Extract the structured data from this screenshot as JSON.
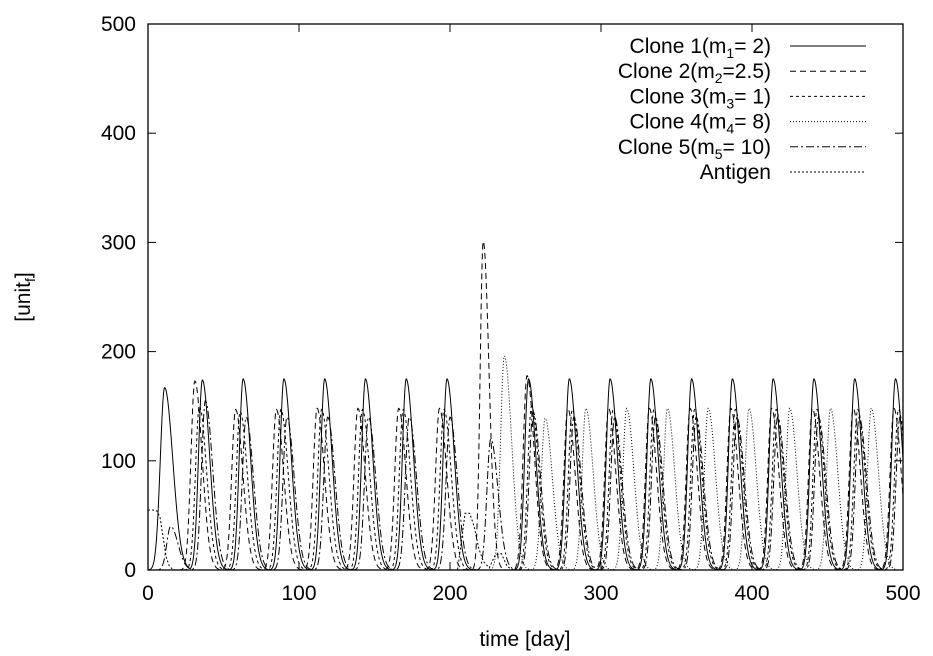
{
  "chart_data": {
    "type": "line",
    "title": "",
    "xlabel": "time [day]",
    "ylabel_main": "[unit",
    "ylabel_sub": "f",
    "ylabel_tail": "]",
    "xlim": [
      0,
      500
    ],
    "ylim": [
      0,
      500
    ],
    "x_ticks": [
      0,
      100,
      200,
      300,
      400,
      500
    ],
    "y_ticks": [
      0,
      100,
      200,
      300,
      400,
      500
    ],
    "x_tick_labels": [
      "0",
      "100",
      "200",
      "300",
      "400",
      "500"
    ],
    "y_tick_labels": [
      "0",
      "100",
      "200",
      "300",
      "400",
      "500"
    ],
    "grid": false,
    "legend_position": "top-right",
    "series": [
      {
        "name": "Clone 1(m1=   2)",
        "legend": {
          "pre": "Clone 1(m",
          "sub": "1",
          "post": "=   2)"
        },
        "dash": "",
        "peaks": [
          {
            "x": 11,
            "y": 167,
            "w": 4.5
          },
          {
            "x": 36,
            "y": 174,
            "w": 4.0
          },
          {
            "x": 63,
            "y": 175,
            "w": 4.0
          },
          {
            "x": 90,
            "y": 175,
            "w": 4.0
          },
          {
            "x": 117,
            "y": 175,
            "w": 4.0
          },
          {
            "x": 144,
            "y": 175,
            "w": 4.0
          },
          {
            "x": 171,
            "y": 175,
            "w": 4.0
          },
          {
            "x": 198,
            "y": 175,
            "w": 4.0
          },
          {
            "x": 252,
            "y": 175,
            "w": 4.0
          },
          {
            "x": 279,
            "y": 175,
            "w": 4.0
          },
          {
            "x": 306,
            "y": 175,
            "w": 4.0
          },
          {
            "x": 333,
            "y": 175,
            "w": 4.0
          },
          {
            "x": 360,
            "y": 175,
            "w": 4.0
          },
          {
            "x": 387,
            "y": 175,
            "w": 4.0
          },
          {
            "x": 414,
            "y": 175,
            "w": 4.0
          },
          {
            "x": 441,
            "y": 175,
            "w": 4.0
          },
          {
            "x": 468,
            "y": 175,
            "w": 4.0
          },
          {
            "x": 495,
            "y": 175,
            "w": 4.0
          }
        ]
      },
      {
        "name": "Clone 2(m2=2.5)",
        "legend": {
          "pre": "Clone 2(m",
          "sub": "2",
          "post": "=2.5)"
        },
        "dash": "6,4",
        "peaks": [
          {
            "x": 31,
            "y": 173,
            "w": 4.0
          },
          {
            "x": 58,
            "y": 147,
            "w": 4.0
          },
          {
            "x": 85,
            "y": 147,
            "w": 4.0
          },
          {
            "x": 112,
            "y": 148,
            "w": 4.0
          },
          {
            "x": 139,
            "y": 148,
            "w": 4.0
          },
          {
            "x": 166,
            "y": 148,
            "w": 4.0
          },
          {
            "x": 193,
            "y": 148,
            "w": 4.0
          },
          {
            "x": 222,
            "y": 301,
            "w": 3.2
          },
          {
            "x": 251,
            "y": 178,
            "w": 4.0
          },
          {
            "x": 278,
            "y": 148,
            "w": 4.0
          },
          {
            "x": 305,
            "y": 148,
            "w": 4.0
          },
          {
            "x": 332,
            "y": 148,
            "w": 4.0
          },
          {
            "x": 359,
            "y": 148,
            "w": 4.0
          },
          {
            "x": 386,
            "y": 148,
            "w": 4.0
          },
          {
            "x": 413,
            "y": 148,
            "w": 4.0
          },
          {
            "x": 440,
            "y": 148,
            "w": 4.0
          },
          {
            "x": 467,
            "y": 148,
            "w": 4.0
          },
          {
            "x": 494,
            "y": 148,
            "w": 4.0
          }
        ]
      },
      {
        "name": "Clone 3(m3=   1)",
        "legend": {
          "pre": "Clone 3(m",
          "sub": "3",
          "post": "=   1)"
        },
        "dash": "3,3",
        "peaks": [
          {
            "x": 34,
            "y": 150,
            "w": 4.0
          },
          {
            "x": 61,
            "y": 145,
            "w": 4.0
          },
          {
            "x": 88,
            "y": 147,
            "w": 4.0
          },
          {
            "x": 115,
            "y": 147,
            "w": 4.0
          },
          {
            "x": 142,
            "y": 147,
            "w": 4.0
          },
          {
            "x": 169,
            "y": 147,
            "w": 4.0
          },
          {
            "x": 196,
            "y": 147,
            "w": 4.0
          },
          {
            "x": 254,
            "y": 150,
            "w": 4.0
          },
          {
            "x": 281,
            "y": 147,
            "w": 4.0
          },
          {
            "x": 308,
            "y": 147,
            "w": 4.0
          },
          {
            "x": 335,
            "y": 147,
            "w": 4.0
          },
          {
            "x": 362,
            "y": 147,
            "w": 4.0
          },
          {
            "x": 389,
            "y": 147,
            "w": 4.0
          },
          {
            "x": 416,
            "y": 147,
            "w": 4.0
          },
          {
            "x": 443,
            "y": 147,
            "w": 4.0
          },
          {
            "x": 470,
            "y": 147,
            "w": 4.0
          },
          {
            "x": 497,
            "y": 147,
            "w": 4.0
          }
        ]
      },
      {
        "name": "Clone 4(m4=   8)",
        "legend": {
          "pre": "Clone 4(m",
          "sub": "4",
          "post": "=   8)"
        },
        "dash": "1,2",
        "peaks": [
          {
            "x": 236,
            "y": 196,
            "w": 4.0
          },
          {
            "x": 263,
            "y": 139,
            "w": 4.0
          },
          {
            "x": 290,
            "y": 148,
            "w": 4.0
          },
          {
            "x": 317,
            "y": 148,
            "w": 4.0
          },
          {
            "x": 344,
            "y": 148,
            "w": 4.0
          },
          {
            "x": 371,
            "y": 148,
            "w": 4.0
          },
          {
            "x": 398,
            "y": 148,
            "w": 4.0
          },
          {
            "x": 425,
            "y": 148,
            "w": 4.0
          },
          {
            "x": 452,
            "y": 148,
            "w": 4.0
          },
          {
            "x": 479,
            "y": 148,
            "w": 4.0
          }
        ]
      },
      {
        "name": "Clone 5(m5= 10)",
        "legend": {
          "pre": "Clone 5(m",
          "sub": "5",
          "post": "= 10)"
        },
        "dash": "8,3,2,3",
        "peaks": [
          {
            "x": 15,
            "y": 40,
            "w": 4.0
          },
          {
            "x": 38,
            "y": 155,
            "w": 4.0
          },
          {
            "x": 65,
            "y": 140,
            "w": 4.0
          },
          {
            "x": 92,
            "y": 140,
            "w": 4.0
          },
          {
            "x": 119,
            "y": 140,
            "w": 4.0
          },
          {
            "x": 146,
            "y": 140,
            "w": 4.0
          },
          {
            "x": 173,
            "y": 140,
            "w": 4.0
          },
          {
            "x": 200,
            "y": 140,
            "w": 4.0
          },
          {
            "x": 227,
            "y": 120,
            "w": 4.0
          },
          {
            "x": 255,
            "y": 145,
            "w": 4.0
          },
          {
            "x": 282,
            "y": 140,
            "w": 4.0
          },
          {
            "x": 309,
            "y": 140,
            "w": 4.0
          },
          {
            "x": 336,
            "y": 140,
            "w": 4.0
          },
          {
            "x": 363,
            "y": 140,
            "w": 4.0
          },
          {
            "x": 390,
            "y": 140,
            "w": 4.0
          },
          {
            "x": 417,
            "y": 140,
            "w": 4.0
          },
          {
            "x": 444,
            "y": 140,
            "w": 4.0
          },
          {
            "x": 471,
            "y": 140,
            "w": 4.0
          },
          {
            "x": 498,
            "y": 140,
            "w": 4.0
          }
        ]
      },
      {
        "name": "Antigen",
        "legend": {
          "pre": "Antigen",
          "sub": "",
          "post": ""
        },
        "dash": "2,2",
        "points": [
          [
            0,
            55
          ],
          [
            3,
            55
          ],
          [
            6,
            54
          ],
          [
            8,
            48
          ],
          [
            10,
            30
          ],
          [
            12,
            12
          ],
          [
            14,
            4
          ],
          [
            16,
            1
          ],
          [
            18,
            0
          ],
          [
            205,
            0
          ],
          [
            210,
            52
          ],
          [
            213,
            52
          ],
          [
            216,
            40
          ],
          [
            219,
            20
          ],
          [
            222,
            8
          ],
          [
            226,
            2
          ],
          [
            230,
            14
          ],
          [
            234,
            15
          ],
          [
            238,
            3
          ],
          [
            242,
            0
          ],
          [
            500,
            0
          ]
        ]
      }
    ]
  }
}
